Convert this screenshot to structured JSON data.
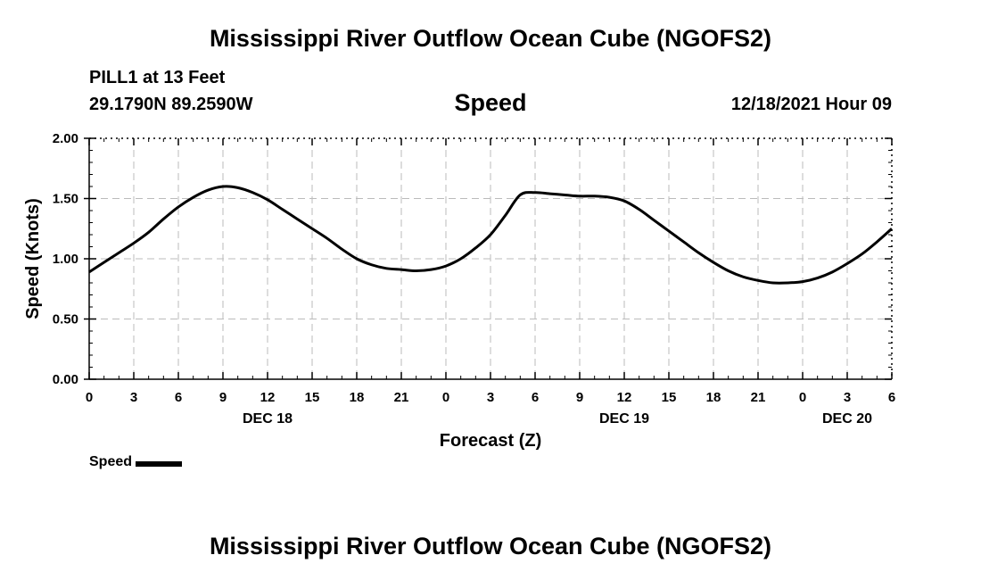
{
  "header": {
    "title": "Mississippi River Outflow Ocean Cube (NGOFS2)",
    "station": "PILL1 at 13 Feet",
    "coords": "29.1790N  89.2590W",
    "variable": "Speed",
    "timestamp": "12/18/2021 Hour 09"
  },
  "footer": {
    "title": "Mississippi River Outflow Ocean Cube (NGOFS2)"
  },
  "legend": {
    "label": "Speed",
    "color": "#000000"
  },
  "chart_data": {
    "type": "line",
    "title": "Speed",
    "xlabel": "Forecast (Z)",
    "ylabel": "Speed (Knots)",
    "xlim": [
      0,
      54
    ],
    "ylim": [
      0,
      2.0
    ],
    "grid": true,
    "yticks": [
      "0.00",
      "0.50",
      "1.00",
      "1.50",
      "2.00"
    ],
    "xticks": [
      {
        "x": 0,
        "label": "0"
      },
      {
        "x": 3,
        "label": "3"
      },
      {
        "x": 6,
        "label": "6"
      },
      {
        "x": 9,
        "label": "9"
      },
      {
        "x": 12,
        "label": "12"
      },
      {
        "x": 15,
        "label": "15"
      },
      {
        "x": 18,
        "label": "18"
      },
      {
        "x": 21,
        "label": "21"
      },
      {
        "x": 24,
        "label": "0"
      },
      {
        "x": 27,
        "label": "3"
      },
      {
        "x": 30,
        "label": "6"
      },
      {
        "x": 33,
        "label": "9"
      },
      {
        "x": 36,
        "label": "12"
      },
      {
        "x": 39,
        "label": "15"
      },
      {
        "x": 42,
        "label": "18"
      },
      {
        "x": 45,
        "label": "21"
      },
      {
        "x": 48,
        "label": "0"
      },
      {
        "x": 51,
        "label": "3"
      },
      {
        "x": 54,
        "label": "6"
      }
    ],
    "day_labels": [
      {
        "x": 12,
        "label": "DEC 18"
      },
      {
        "x": 36,
        "label": "DEC 19"
      },
      {
        "x": 51,
        "label": "DEC 20"
      }
    ],
    "series": [
      {
        "name": "Speed",
        "x": [
          0,
          1,
          2,
          3,
          4,
          5,
          6,
          7,
          8,
          9,
          10,
          11,
          12,
          13,
          14,
          15,
          16,
          17,
          18,
          19,
          20,
          21,
          22,
          23,
          24,
          25,
          26,
          27,
          28,
          29,
          30,
          31,
          32,
          33,
          34,
          35,
          36,
          37,
          38,
          39,
          40,
          41,
          42,
          43,
          44,
          45,
          46,
          47,
          48,
          49,
          50,
          51,
          52,
          53,
          54
        ],
        "values": [
          0.89,
          0.97,
          1.05,
          1.13,
          1.22,
          1.33,
          1.43,
          1.51,
          1.57,
          1.6,
          1.59,
          1.55,
          1.49,
          1.41,
          1.33,
          1.25,
          1.17,
          1.08,
          1.0,
          0.95,
          0.92,
          0.91,
          0.9,
          0.91,
          0.94,
          1.0,
          1.09,
          1.2,
          1.36,
          1.53,
          1.55,
          1.54,
          1.53,
          1.52,
          1.52,
          1.51,
          1.48,
          1.41,
          1.32,
          1.23,
          1.14,
          1.05,
          0.97,
          0.9,
          0.85,
          0.82,
          0.8,
          0.8,
          0.81,
          0.84,
          0.89,
          0.96,
          1.04,
          1.14,
          1.25
        ]
      }
    ]
  }
}
